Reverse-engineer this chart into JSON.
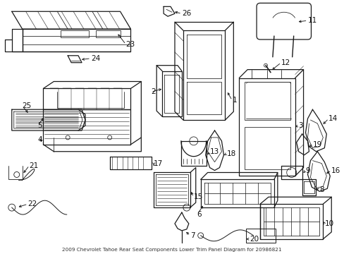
{
  "title": "2009 Chevrolet Tahoe Rear Seat Components Lower Trim Panel Diagram for 20986821",
  "bg_color": "#ffffff",
  "line_color": "#1a1a1a",
  "label_color": "#111111",
  "figsize": [
    4.89,
    3.6
  ],
  "dpi": 100
}
